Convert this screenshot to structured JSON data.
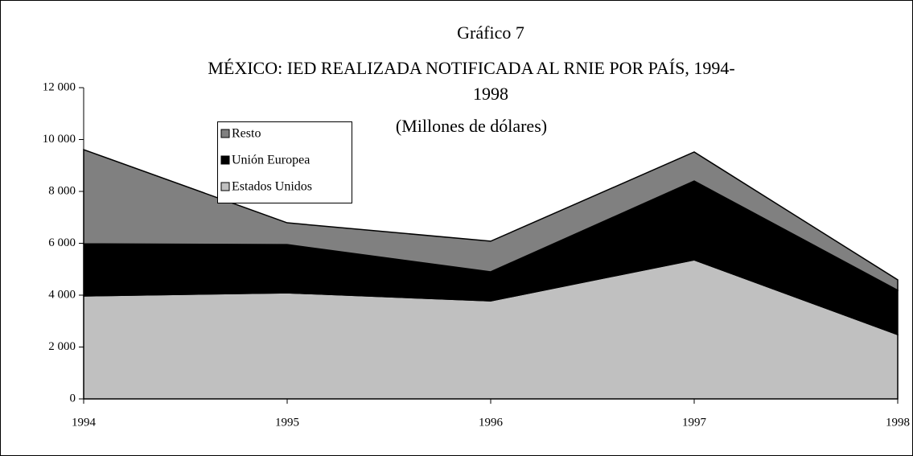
{
  "chart_data": {
    "type": "stacked-area",
    "title": "Gráfico 7",
    "subtitle": [
      "MÉXICO: IED REALIZADA NOTIFICADA AL RNIE POR PAÍS, 1994-",
      "1998",
      "(Millones de dólares)"
    ],
    "categories": [
      "1994",
      "1995",
      "1996",
      "1997",
      "1998"
    ],
    "series": [
      {
        "name": "Estados Unidos",
        "color": "#c0c0c0",
        "values": [
          3970,
          4090,
          3780,
          5360,
          2480
        ]
      },
      {
        "name": "Unión Europea",
        "color": "#000000",
        "values": [
          2010,
          1860,
          1120,
          3040,
          1710
        ]
      },
      {
        "name": "Resto",
        "color": "#808080",
        "values": [
          3630,
          840,
          1180,
          1120,
          400
        ]
      }
    ],
    "ylim": [
      0,
      12000
    ],
    "yticks": [
      0,
      {
        "value": 2000,
        "label": "2 000"
      },
      {
        "value": 4000,
        "label": "4 000"
      },
      {
        "value": 6000,
        "label": "6 000"
      },
      {
        "value": 8000,
        "label": "8 000"
      },
      {
        "value": 10000,
        "label": "10 000"
      },
      {
        "value": 12000,
        "label": "12 000"
      }
    ],
    "grid": false
  }
}
